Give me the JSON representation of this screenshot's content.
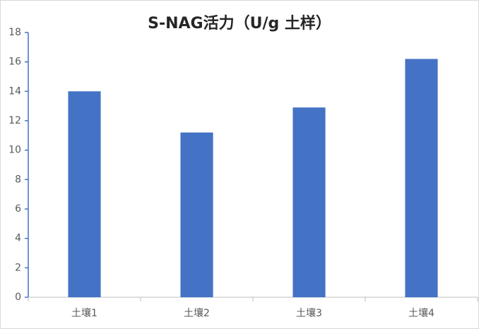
{
  "chart_data": {
    "type": "bar",
    "title": "S-NAG活力（U/g 土样）",
    "categories": [
      "土壤1",
      "土壤2",
      "土壤3",
      "土壤4"
    ],
    "values": [
      14,
      11.2,
      12.9,
      16.2
    ],
    "color": "#4472c4",
    "ylim": [
      0,
      18
    ],
    "yticks": [
      0,
      2,
      4,
      6,
      8,
      10,
      12,
      14,
      16,
      18
    ],
    "grid": false
  }
}
